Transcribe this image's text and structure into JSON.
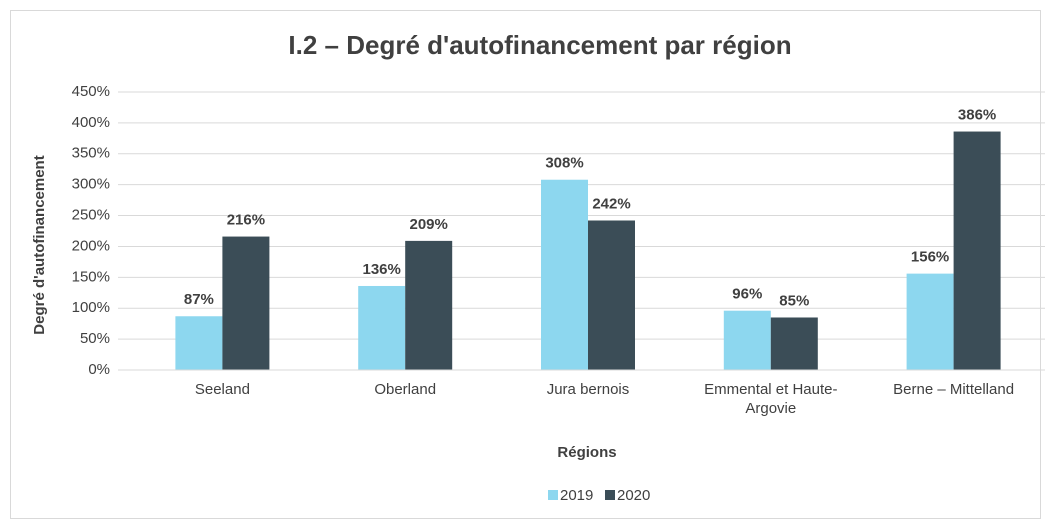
{
  "chart_data": {
    "type": "bar",
    "title": "I.2 – Degré d'autofinancement par région",
    "y_label": "Degré d'autofinancement",
    "x_label": "Régions",
    "categories": [
      "Seeland",
      "Oberland",
      "Jura bernois",
      "Emmental et Haute-Argovie",
      "Berne – Mittelland"
    ],
    "series": [
      {
        "name": "2019",
        "color": "#8dd7ef",
        "values": [
          87,
          136,
          308,
          96,
          156
        ],
        "value_labels": [
          "87%",
          "136%",
          "308%",
          "96%",
          "156%"
        ]
      },
      {
        "name": "2020",
        "color": "#3b4d57",
        "values": [
          216,
          209,
          242,
          85,
          386
        ],
        "value_labels": [
          "216%",
          "209%",
          "242%",
          "85%",
          "386%"
        ]
      }
    ],
    "ylim": [
      0,
      450
    ],
    "yticks": [
      {
        "value": 0,
        "label": "0%"
      },
      {
        "value": 50,
        "label": "50%"
      },
      {
        "value": 100,
        "label": "100%"
      },
      {
        "value": 150,
        "label": "150%"
      },
      {
        "value": 200,
        "label": "200%"
      },
      {
        "value": 250,
        "label": "250%"
      },
      {
        "value": 300,
        "label": "300%"
      },
      {
        "value": 350,
        "label": "350%"
      },
      {
        "value": 400,
        "label": "400%"
      },
      {
        "value": 450,
        "label": "450%"
      }
    ],
    "grid": true,
    "legend": "bottom"
  }
}
